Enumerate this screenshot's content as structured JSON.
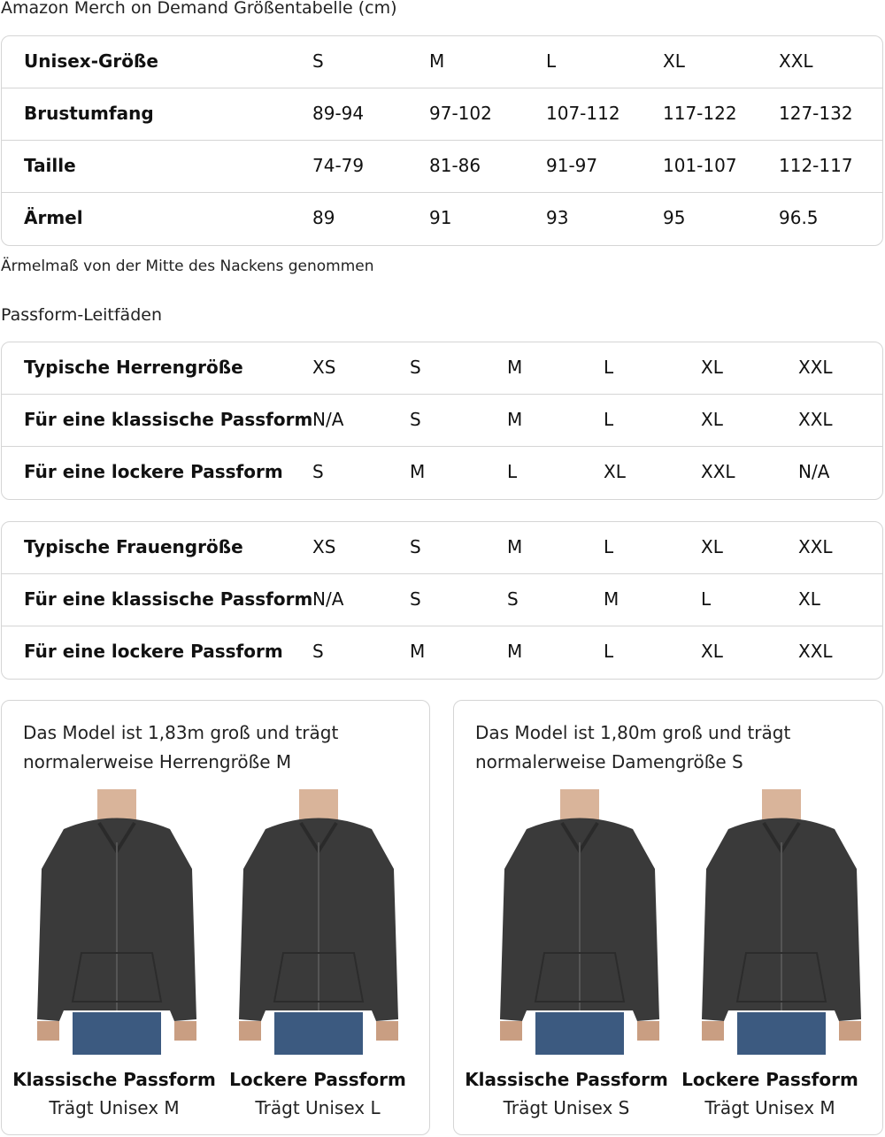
{
  "title": "Amazon Merch on Demand Größentabelle (cm)",
  "size_table": {
    "rows": [
      [
        "Unisex-Größe",
        "S",
        "M",
        "L",
        "XL",
        "XXL"
      ],
      [
        "Brustumfang",
        "89-94",
        "97-102",
        "107-112",
        "117-122",
        "127-132"
      ],
      [
        "Taille",
        "74-79",
        "81-86",
        "91-97",
        "101-107",
        "112-117"
      ],
      [
        "Ärmel",
        "89",
        "91",
        "93",
        "95",
        "96.5"
      ]
    ]
  },
  "note": "Ärmelmaß von der Mitte des Nackens genommen",
  "fit_title": "Passform-Leitfäden",
  "men_table": {
    "rows": [
      [
        "Typische Herrengröße",
        "XS",
        "S",
        "M",
        "L",
        "XL",
        "XXL"
      ],
      [
        "Für eine klassische Passform",
        "N/A",
        "S",
        "M",
        "L",
        "XL",
        "XXL"
      ],
      [
        "Für eine lockere Passform",
        "S",
        "M",
        "L",
        "XL",
        "XXL",
        "N/A"
      ]
    ]
  },
  "women_table": {
    "rows": [
      [
        "Typische Frauengröße",
        "XS",
        "S",
        "M",
        "L",
        "XL",
        "XXL"
      ],
      [
        "Für eine klassische Passform",
        "N/A",
        "S",
        "S",
        "M",
        "L",
        "XL"
      ],
      [
        "Für eine lockere Passform",
        "S",
        "M",
        "M",
        "L",
        "XL",
        "XXL"
      ]
    ]
  },
  "cards": [
    {
      "line1": "Das Model ist 1,83m groß und trägt",
      "line2": "normalerweise Herrengröße M",
      "photos": [
        {
          "caption": "Klassische Passform",
          "sub": "Trägt Unisex M"
        },
        {
          "caption": "Lockere Passform",
          "sub": "Trägt Unisex L"
        }
      ]
    },
    {
      "line1": "Das Model ist 1,80m groß und trägt",
      "line2": "normalerweise Damengröße S",
      "photos": [
        {
          "caption": "Klassische Passform",
          "sub": "Trägt Unisex S"
        },
        {
          "caption": "Lockere Passform",
          "sub": "Trägt Unisex M"
        }
      ]
    }
  ],
  "colors": {
    "border": "#d5d5d5",
    "hoodie": "#3a3a3a",
    "jeans": "#3c5a80"
  }
}
